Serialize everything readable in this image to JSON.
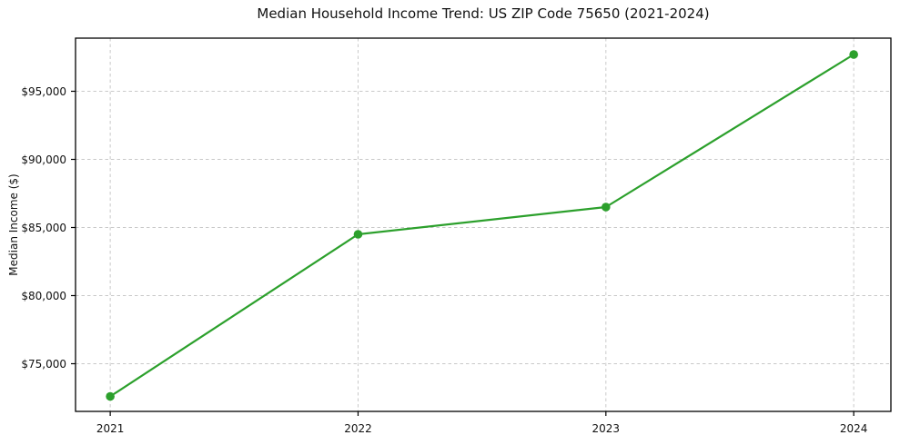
{
  "chart_data": {
    "type": "line",
    "title": "Median Household Income Trend: US ZIP Code 75650 (2021-2024)",
    "xlabel": "",
    "ylabel": "Median Income ($)",
    "x": [
      2021,
      2022,
      2023,
      2024
    ],
    "values": [
      72600,
      84500,
      86500,
      97700
    ],
    "x_tick_labels": [
      "2021",
      "2022",
      "2023",
      "2024"
    ],
    "y_ticks": [
      75000,
      80000,
      85000,
      90000,
      95000
    ],
    "y_tick_labels": [
      "$75,000",
      "$80,000",
      "$85,000",
      "$90,000",
      "$95,000"
    ],
    "xlim": [
      2020.86,
      2024.15
    ],
    "ylim": [
      71500,
      98900
    ],
    "grid": "both-axes, dashed",
    "legend": "none",
    "marker": "circle",
    "line_color": "#2ca02c",
    "grid_color": "#c9c9c9",
    "axis_color": "#000000",
    "background": "#ffffff"
  }
}
